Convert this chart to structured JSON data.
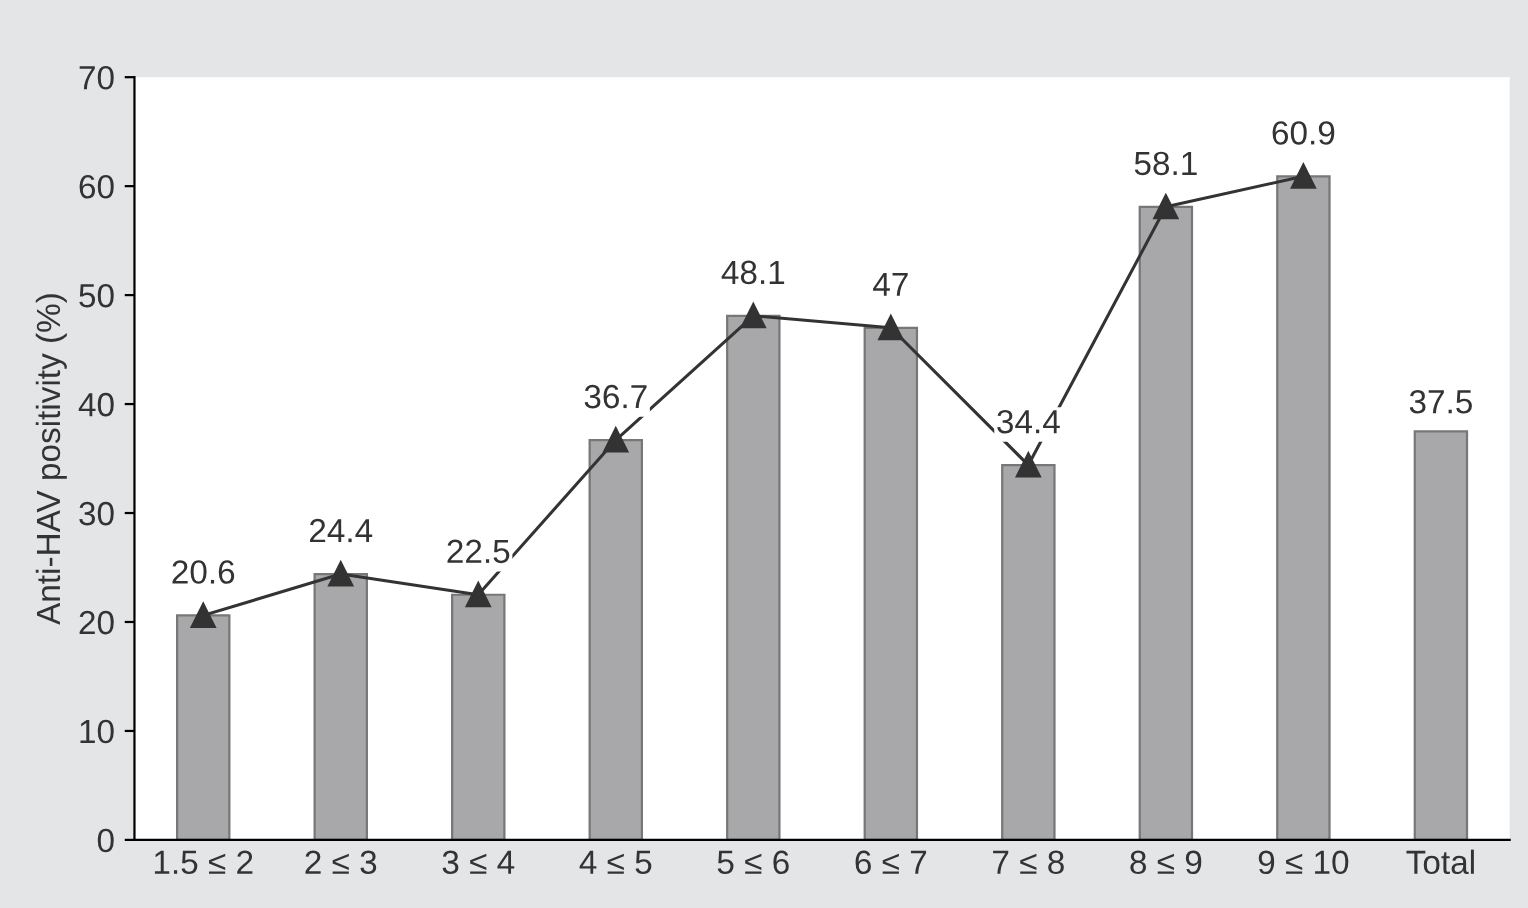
{
  "chart_data": {
    "type": "bar",
    "ylabel": "Anti-HAV positivity (%)",
    "categories": [
      "1.5 ≤ 2",
      "2 ≤ 3",
      "3 ≤ 4",
      "4 ≤ 5",
      "5 ≤ 6",
      "6 ≤ 7",
      "7 ≤ 8",
      "8 ≤ 9",
      "9 ≤ 10",
      "Total"
    ],
    "series": [
      {
        "color": "#a8a8aa",
        "values": [
          20.6,
          24.4,
          22.5,
          36.7,
          48.1,
          47,
          34.4,
          58.1,
          60.9,
          37.5
        ],
        "value_labels": [
          null,
          null,
          null,
          null,
          null,
          null,
          null,
          null,
          null,
          "37.5"
        ]
      },
      {
        "type": "line",
        "color": "#333333",
        "marker": "triangle",
        "values": [
          20.6,
          24.4,
          22.5,
          36.7,
          48.1,
          47,
          34.4,
          58.1,
          60.9,
          null
        ],
        "value_labels": [
          "20.6",
          "24.4",
          "22.5",
          "36.7",
          "48.1",
          "47",
          "34.4",
          "58.1",
          "60.9",
          null
        ]
      }
    ],
    "ylim": [
      0,
      70
    ],
    "yticks": [
      0,
      10,
      20,
      30,
      40,
      50,
      60,
      70
    ],
    "grid": false,
    "legend": false
  }
}
